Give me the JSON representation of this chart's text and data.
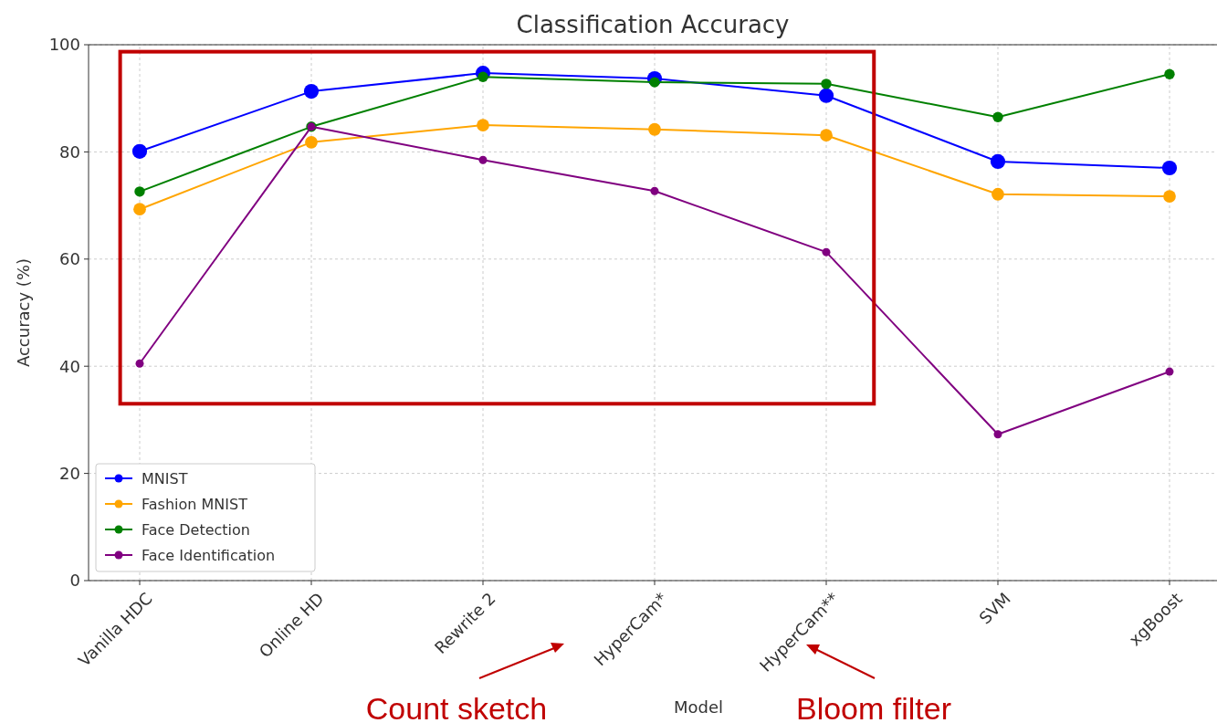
{
  "chart_data": {
    "type": "line",
    "title": "Classification Accuracy",
    "xlabel": "Model",
    "ylabel": "Accuracy (%)",
    "categories": [
      "Vanilla HDC",
      "Online HD",
      "Rewrite 2",
      "HyperCam*",
      "HyperCam**",
      "SVM",
      "xgBoost"
    ],
    "series": [
      {
        "name": "MNIST",
        "color": "#0000ff",
        "values": [
          80.1,
          91.3,
          94.7,
          93.7,
          90.5,
          78.2,
          77.0
        ]
      },
      {
        "name": "Fashion MNIST",
        "color": "#ffa500",
        "values": [
          69.3,
          81.8,
          85.0,
          84.2,
          83.1,
          72.1,
          71.7
        ]
      },
      {
        "name": "Face Detection",
        "color": "#008000",
        "values": [
          72.6,
          84.7,
          94.0,
          93.0,
          92.7,
          86.5,
          94.5
        ]
      },
      {
        "name": "Face Identification",
        "color": "#800080",
        "values": [
          40.5,
          84.7,
          78.5,
          72.7,
          61.3,
          27.3,
          39.0
        ]
      }
    ],
    "ylim": [
      0,
      100
    ],
    "yticks": [
      0,
      20,
      40,
      60,
      80,
      100
    ],
    "grid": true,
    "legend": "bottom left",
    "marker": "circle",
    "line_style": "solid",
    "annotations": [
      "Count sketch",
      "Bloom filter"
    ]
  }
}
